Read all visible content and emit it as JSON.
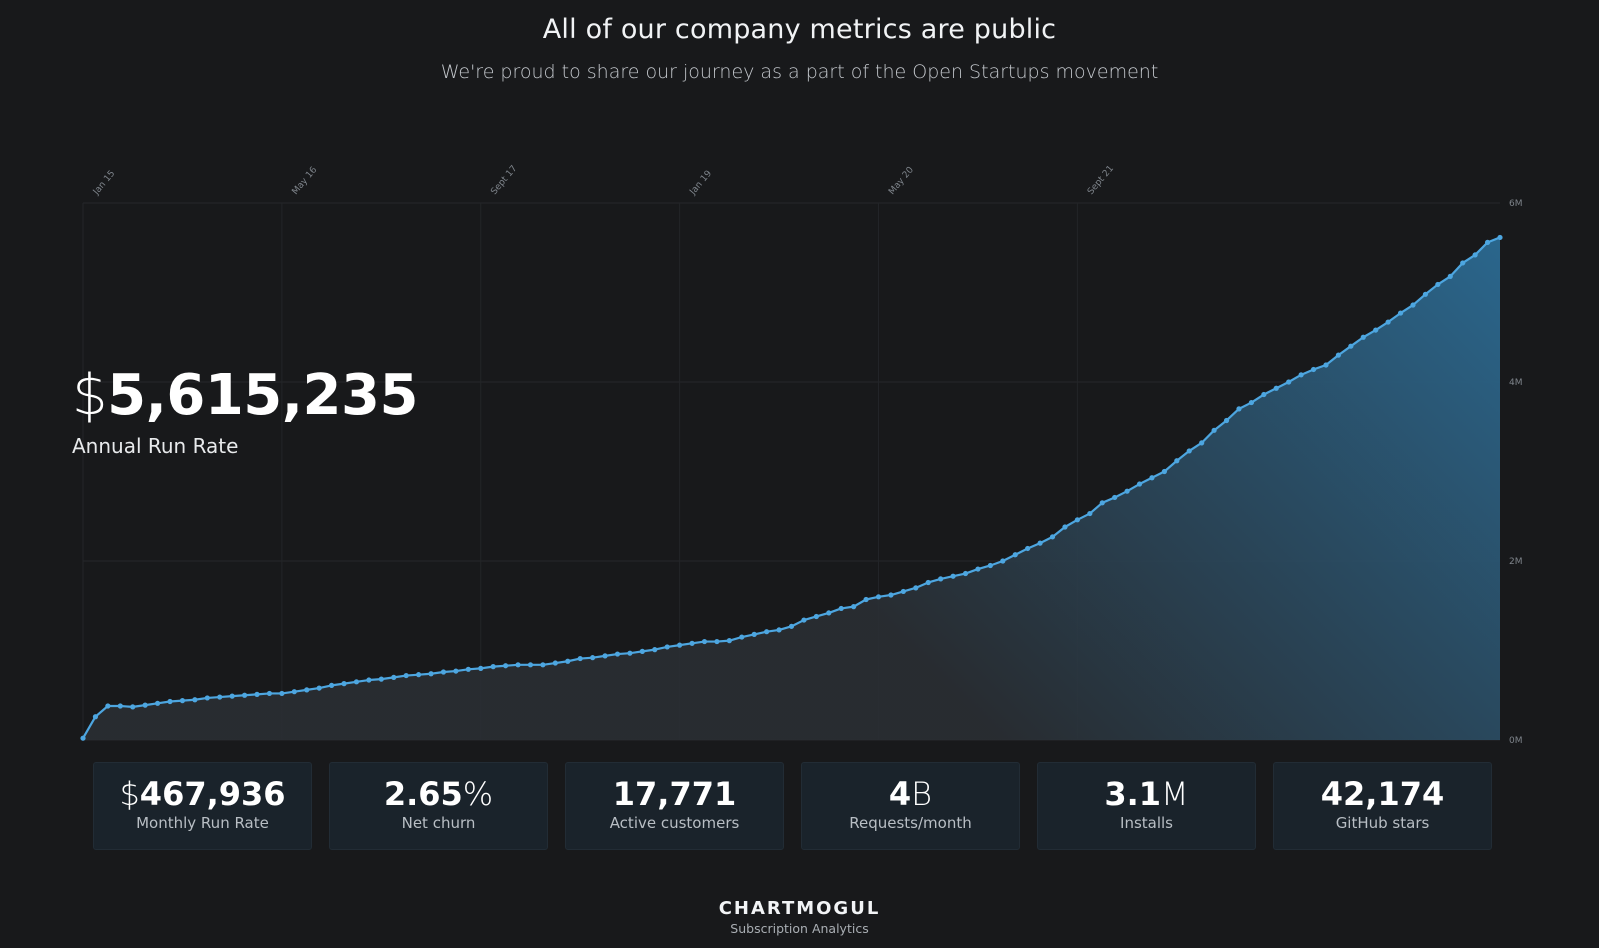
{
  "header": {
    "title": "All of our company metrics are public",
    "subtitle": "We're proud to share our journey as a part of the Open Startups movement"
  },
  "hero": {
    "currency": "$",
    "value": "5,615,235",
    "label": "Annual Run Rate"
  },
  "stats": [
    {
      "prefix": "$",
      "value": "467,936",
      "suffix": "",
      "label": "Monthly Run Rate"
    },
    {
      "prefix": "",
      "value": "2.65",
      "suffix": "%",
      "label": "Net churn"
    },
    {
      "prefix": "",
      "value": "17,771",
      "suffix": "",
      "label": "Active customers"
    },
    {
      "prefix": "",
      "value": "4",
      "suffix": "B",
      "label": "Requests/month"
    },
    {
      "prefix": "",
      "value": "3.1",
      "suffix": "M",
      "label": "Installs"
    },
    {
      "prefix": "",
      "value": "42,174",
      "suffix": "",
      "label": "GitHub stars"
    }
  ],
  "footer": {
    "logo": "CHARTMOGUL",
    "tagline": "Subscription Analytics"
  },
  "colors": {
    "background": "#18191b",
    "line": "#4da6e0",
    "area_top": "#2b6a92",
    "grid": "#26282b"
  },
  "chart_data": {
    "type": "area",
    "title": "",
    "xlabel": "",
    "ylabel": "",
    "x_tick_labels": [
      "Jan 15",
      "May 16",
      "Sept 17",
      "Jan 19",
      "May 20",
      "Sept 21"
    ],
    "y_tick_labels": [
      "0M",
      "2M",
      "4M",
      "6M"
    ],
    "ylim": [
      0,
      6000000
    ],
    "grid": true,
    "x_start": "Jan 2015",
    "x_unit": "month",
    "series": [
      {
        "name": "",
        "values": [
          20000,
          260000,
          380000,
          380000,
          370000,
          390000,
          410000,
          430000,
          440000,
          450000,
          470000,
          480000,
          490000,
          500000,
          510000,
          520000,
          520000,
          540000,
          560000,
          580000,
          610000,
          630000,
          650000,
          670000,
          680000,
          700000,
          720000,
          730000,
          740000,
          760000,
          770000,
          790000,
          800000,
          820000,
          830000,
          840000,
          840000,
          840000,
          860000,
          880000,
          910000,
          920000,
          940000,
          960000,
          970000,
          990000,
          1010000,
          1040000,
          1060000,
          1080000,
          1100000,
          1100000,
          1110000,
          1150000,
          1180000,
          1210000,
          1230000,
          1270000,
          1340000,
          1380000,
          1420000,
          1470000,
          1490000,
          1570000,
          1600000,
          1620000,
          1660000,
          1700000,
          1760000,
          1800000,
          1830000,
          1860000,
          1910000,
          1950000,
          2000000,
          2070000,
          2140000,
          2200000,
          2270000,
          2380000,
          2460000,
          2530000,
          2650000,
          2710000,
          2780000,
          2860000,
          2930000,
          3000000,
          3120000,
          3230000,
          3320000,
          3460000,
          3570000,
          3700000,
          3770000,
          3860000,
          3930000,
          4000000,
          4080000,
          4140000,
          4190000,
          4300000,
          4400000,
          4500000,
          4580000,
          4670000,
          4770000,
          4860000,
          4980000,
          5090000,
          5180000,
          5330000,
          5420000,
          5560000,
          5615235
        ]
      }
    ]
  }
}
